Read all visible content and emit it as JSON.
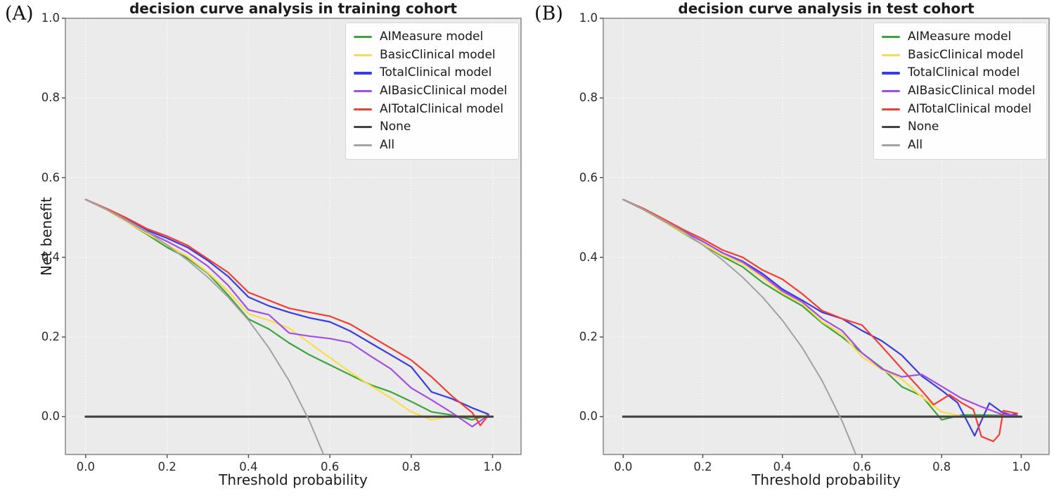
{
  "colors": {
    "figure_background": "#ffffff",
    "plot_background": "#ebebeb",
    "gridline": "#ffffff",
    "spine": "#87878b",
    "tick_mark": "#4a4a4a",
    "text": "#1c1c1c"
  },
  "chart_data": [
    {
      "type": "line",
      "panel_label": "(A)",
      "title": "decision curve analysis in training cohort",
      "xlabel": "Threshold probability",
      "ylabel": "Net benefit",
      "xlim": [
        -0.05,
        1.07
      ],
      "ylim": [
        -0.095,
        1.0
      ],
      "xticks": [
        0.0,
        0.2,
        0.4,
        0.6,
        0.8,
        1.0
      ],
      "yticks": [
        0.0,
        0.2,
        0.4,
        0.6,
        0.8,
        1.0
      ],
      "xtick_labels": [
        "0.0",
        "0.2",
        "0.4",
        "0.6",
        "0.8",
        "1.0"
      ],
      "ytick_labels": [
        "0.0",
        "0.2",
        "0.4",
        "0.6",
        "0.8",
        "1.0"
      ],
      "grid": true,
      "legend_position": "upper right",
      "series": [
        {
          "name": "AIMeasure model",
          "color": "#3ba43b",
          "lw": 2.2,
          "x": [
            0,
            0.05,
            0.1,
            0.15,
            0.2,
            0.25,
            0.3,
            0.35,
            0.4,
            0.45,
            0.5,
            0.55,
            0.6,
            0.65,
            0.7,
            0.75,
            0.8,
            0.85,
            0.9,
            0.95,
            0.99
          ],
          "y": [
            0.545,
            0.52,
            0.49,
            0.458,
            0.425,
            0.398,
            0.36,
            0.305,
            0.245,
            0.22,
            0.185,
            0.155,
            0.13,
            0.105,
            0.08,
            0.062,
            0.038,
            0.012,
            0.004,
            -0.008,
            0.004
          ]
        },
        {
          "name": "BasicClinical model",
          "color": "#f9dd4b",
          "lw": 2.2,
          "x": [
            0,
            0.05,
            0.1,
            0.15,
            0.2,
            0.25,
            0.3,
            0.35,
            0.4,
            0.45,
            0.5,
            0.55,
            0.6,
            0.65,
            0.7,
            0.75,
            0.8,
            0.85,
            0.9,
            0.95,
            0.99
          ],
          "y": [
            0.545,
            0.52,
            0.49,
            0.46,
            0.432,
            0.402,
            0.362,
            0.315,
            0.258,
            0.242,
            0.222,
            0.185,
            0.148,
            0.112,
            0.078,
            0.047,
            0.012,
            -0.008,
            0.001,
            0.002,
            0.002
          ]
        },
        {
          "name": "TotalClinical model",
          "color": "#3b3be0",
          "lw": 2.2,
          "x": [
            0,
            0.05,
            0.1,
            0.15,
            0.2,
            0.25,
            0.3,
            0.35,
            0.4,
            0.45,
            0.5,
            0.55,
            0.6,
            0.65,
            0.7,
            0.75,
            0.8,
            0.85,
            0.9,
            0.95,
            0.99
          ],
          "y": [
            0.545,
            0.522,
            0.496,
            0.468,
            0.448,
            0.425,
            0.392,
            0.352,
            0.3,
            0.278,
            0.262,
            0.248,
            0.238,
            0.215,
            0.185,
            0.155,
            0.125,
            0.062,
            0.045,
            0.022,
            0.006
          ]
        },
        {
          "name": "AIBasicClinical model",
          "color": "#a34fe6",
          "lw": 2.2,
          "x": [
            0,
            0.05,
            0.1,
            0.15,
            0.2,
            0.25,
            0.3,
            0.35,
            0.4,
            0.45,
            0.5,
            0.55,
            0.6,
            0.65,
            0.7,
            0.75,
            0.8,
            0.85,
            0.9,
            0.95,
            0.99
          ],
          "y": [
            0.545,
            0.521,
            0.493,
            0.464,
            0.44,
            0.413,
            0.378,
            0.33,
            0.268,
            0.256,
            0.21,
            0.202,
            0.196,
            0.186,
            0.152,
            0.12,
            0.072,
            0.042,
            0.01,
            -0.025,
            0.004
          ]
        },
        {
          "name": "AITotalClinical model",
          "color": "#f23e34",
          "lw": 2.2,
          "x": [
            0,
            0.05,
            0.1,
            0.15,
            0.2,
            0.25,
            0.3,
            0.35,
            0.4,
            0.45,
            0.5,
            0.55,
            0.6,
            0.65,
            0.7,
            0.75,
            0.8,
            0.85,
            0.9,
            0.95,
            0.97,
            0.99
          ],
          "y": [
            0.545,
            0.523,
            0.499,
            0.472,
            0.453,
            0.43,
            0.396,
            0.362,
            0.312,
            0.292,
            0.272,
            0.262,
            0.252,
            0.232,
            0.202,
            0.172,
            0.142,
            0.1,
            0.052,
            0.01,
            -0.022,
            0.004
          ]
        },
        {
          "name": "None",
          "color": "#434347",
          "lw": 3.2,
          "x": [
            0,
            1.0
          ],
          "y": [
            0,
            0
          ]
        },
        {
          "name": "All",
          "color": "#a2a2a2",
          "lw": 2.0,
          "x": [
            0,
            0.05,
            0.1,
            0.15,
            0.2,
            0.25,
            0.3,
            0.35,
            0.4,
            0.45,
            0.5,
            0.55,
            0.585
          ],
          "y": [
            0.545,
            0.521,
            0.494,
            0.465,
            0.431,
            0.393,
            0.35,
            0.3,
            0.242,
            0.173,
            0.09,
            -0.011,
            -0.096
          ]
        }
      ]
    },
    {
      "type": "line",
      "panel_label": "(B)",
      "title": "decision curve analysis in test cohort",
      "xlabel": "Threshold probability",
      "ylabel": "",
      "xlim": [
        -0.05,
        1.07
      ],
      "ylim": [
        -0.095,
        1.0
      ],
      "xticks": [
        0.0,
        0.2,
        0.4,
        0.6,
        0.8,
        1.0
      ],
      "yticks": [
        0.0,
        0.2,
        0.4,
        0.6,
        0.8,
        1.0
      ],
      "xtick_labels": [
        "0.0",
        "0.2",
        "0.4",
        "0.6",
        "0.8",
        "1.0"
      ],
      "ytick_labels": [
        "0.0",
        "0.2",
        "0.4",
        "0.6",
        "0.8",
        "1.0"
      ],
      "grid": true,
      "legend_position": "upper right",
      "series": [
        {
          "name": "AIMeasure model",
          "color": "#3ba43b",
          "lw": 2.2,
          "x": [
            0,
            0.05,
            0.1,
            0.15,
            0.2,
            0.25,
            0.3,
            0.35,
            0.4,
            0.45,
            0.5,
            0.55,
            0.6,
            0.65,
            0.7,
            0.75,
            0.8,
            0.85,
            0.9,
            0.95,
            0.99
          ],
          "y": [
            0.545,
            0.52,
            0.491,
            0.461,
            0.432,
            0.402,
            0.376,
            0.337,
            0.306,
            0.278,
            0.235,
            0.2,
            0.16,
            0.122,
            0.075,
            0.052,
            -0.008,
            0.004,
            0.004,
            0.003,
            0.003
          ]
        },
        {
          "name": "BasicClinical model",
          "color": "#f9dd4b",
          "lw": 2.2,
          "x": [
            0,
            0.05,
            0.1,
            0.15,
            0.2,
            0.25,
            0.3,
            0.35,
            0.4,
            0.45,
            0.5,
            0.55,
            0.6,
            0.65,
            0.7,
            0.75,
            0.8,
            0.85,
            0.9,
            0.95,
            0.99
          ],
          "y": [
            0.545,
            0.52,
            0.491,
            0.462,
            0.434,
            0.405,
            0.384,
            0.349,
            0.31,
            0.284,
            0.238,
            0.208,
            0.15,
            0.118,
            0.094,
            0.05,
            0.012,
            0.001,
            0.001,
            0.001,
            0.002
          ]
        },
        {
          "name": "TotalClinical model",
          "color": "#3b3be0",
          "lw": 2.2,
          "x": [
            0,
            0.05,
            0.1,
            0.15,
            0.2,
            0.25,
            0.3,
            0.35,
            0.4,
            0.45,
            0.5,
            0.55,
            0.6,
            0.65,
            0.7,
            0.75,
            0.8,
            0.84,
            0.883,
            0.92,
            0.95,
            0.975,
            0.99
          ],
          "y": [
            0.545,
            0.521,
            0.494,
            0.466,
            0.44,
            0.411,
            0.39,
            0.359,
            0.32,
            0.292,
            0.262,
            0.246,
            0.216,
            0.19,
            0.154,
            0.102,
            0.066,
            0.035,
            -0.048,
            0.034,
            0.012,
            0.004,
            0.008
          ]
        },
        {
          "name": "AIBasicClinical model",
          "color": "#a34fe6",
          "lw": 2.2,
          "x": [
            0,
            0.05,
            0.1,
            0.15,
            0.2,
            0.25,
            0.3,
            0.35,
            0.4,
            0.45,
            0.5,
            0.55,
            0.6,
            0.65,
            0.7,
            0.75,
            0.8,
            0.85,
            0.9,
            0.95,
            0.99
          ],
          "y": [
            0.545,
            0.521,
            0.493,
            0.465,
            0.44,
            0.411,
            0.388,
            0.354,
            0.315,
            0.288,
            0.246,
            0.216,
            0.16,
            0.12,
            0.1,
            0.106,
            0.076,
            0.046,
            0.025,
            0.006,
            0.003
          ]
        },
        {
          "name": "AITotalClinical model",
          "color": "#f23e34",
          "lw": 2.2,
          "x": [
            0,
            0.05,
            0.1,
            0.15,
            0.2,
            0.25,
            0.3,
            0.35,
            0.4,
            0.45,
            0.5,
            0.55,
            0.6,
            0.65,
            0.7,
            0.75,
            0.78,
            0.82,
            0.85,
            0.88,
            0.9,
            0.93,
            0.945,
            0.955,
            0.99
          ],
          "y": [
            0.545,
            0.523,
            0.497,
            0.47,
            0.446,
            0.418,
            0.4,
            0.368,
            0.345,
            0.308,
            0.266,
            0.246,
            0.23,
            0.176,
            0.12,
            0.065,
            0.03,
            0.055,
            0.035,
            0.018,
            -0.05,
            -0.062,
            -0.045,
            0.015,
            0.008
          ]
        },
        {
          "name": "None",
          "color": "#434347",
          "lw": 3.2,
          "x": [
            0,
            1.0
          ],
          "y": [
            0,
            0
          ]
        },
        {
          "name": "All",
          "color": "#a2a2a2",
          "lw": 2.0,
          "x": [
            0,
            0.05,
            0.1,
            0.15,
            0.2,
            0.25,
            0.3,
            0.35,
            0.4,
            0.45,
            0.5,
            0.55,
            0.585
          ],
          "y": [
            0.545,
            0.521,
            0.494,
            0.465,
            0.431,
            0.393,
            0.35,
            0.3,
            0.242,
            0.173,
            0.09,
            -0.011,
            -0.096
          ]
        }
      ]
    }
  ]
}
